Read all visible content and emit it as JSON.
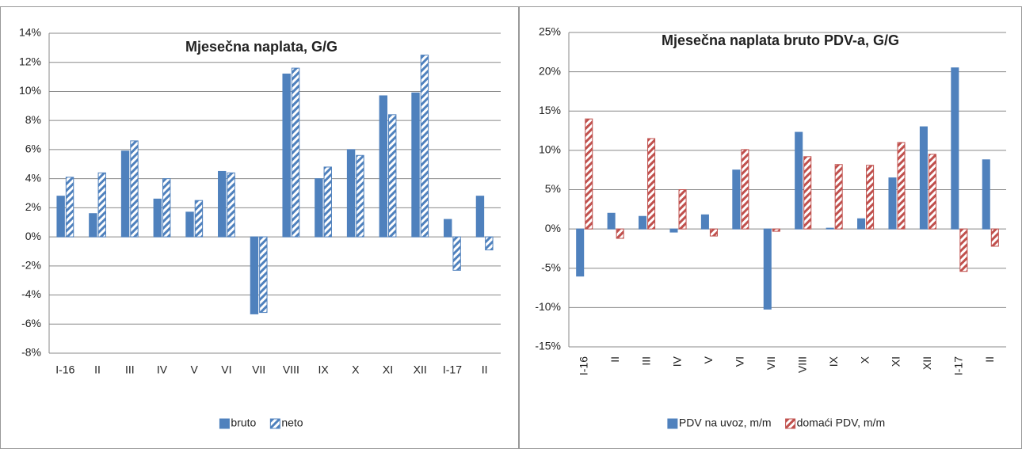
{
  "chart_data": [
    {
      "type": "bar",
      "title": "Mjesečna naplata, G/G",
      "categories": [
        "I-16",
        "II",
        "III",
        "IV",
        "V",
        "VI",
        "VII",
        "VIII",
        "IX",
        "X",
        "XI",
        "XII",
        "I-17",
        "II"
      ],
      "series": [
        {
          "name": "bruto",
          "color": "#4f81bd",
          "hatch": false,
          "values": [
            2.8,
            1.6,
            5.9,
            2.6,
            1.7,
            4.5,
            -5.3,
            11.2,
            4.0,
            6.0,
            9.7,
            9.9,
            1.2,
            2.8
          ]
        },
        {
          "name": "neto",
          "color": "#4f81bd",
          "hatch": true,
          "values": [
            4.1,
            4.4,
            6.6,
            4.0,
            2.5,
            4.4,
            -5.2,
            11.6,
            4.8,
            5.6,
            8.4,
            12.5,
            -2.3,
            -0.9
          ]
        }
      ],
      "ylim": [
        -8,
        14
      ],
      "yticks": [
        {
          "value": -8,
          "label": "-8%"
        },
        {
          "value": -6,
          "label": "-6%"
        },
        {
          "value": -4,
          "label": "-4%"
        },
        {
          "value": -2,
          "label": "-2%"
        },
        {
          "value": 0,
          "label": "0%"
        },
        {
          "value": 2,
          "label": "2%"
        },
        {
          "value": 4,
          "label": "4%"
        },
        {
          "value": 6,
          "label": "6%"
        },
        {
          "value": 8,
          "label": "8%"
        },
        {
          "value": 10,
          "label": "10%"
        },
        {
          "value": 12,
          "label": "12%"
        },
        {
          "value": 14,
          "label": "14%"
        }
      ],
      "grid": true,
      "rotate_labels": false
    },
    {
      "type": "bar",
      "title": "Mjesečna naplata bruto PDV-a, G/G",
      "categories": [
        "I-16",
        "II",
        "III",
        "IV",
        "V",
        "VI",
        "VII",
        "VIII",
        "IX",
        "X",
        "XI",
        "XII",
        "I-17",
        "II"
      ],
      "series": [
        {
          "name": "PDV na uvoz, m/m",
          "color": "#4f81bd",
          "hatch": false,
          "values": [
            -6.0,
            2.0,
            1.6,
            -0.4,
            1.8,
            7.5,
            -10.2,
            12.3,
            0.1,
            1.3,
            6.5,
            13.0,
            20.5,
            8.8
          ]
        },
        {
          "name": "domaći PDV, m/m",
          "color": "#c0504d",
          "hatch": true,
          "values": [
            14.0,
            -1.2,
            11.5,
            5.0,
            -0.9,
            10.1,
            -0.3,
            9.2,
            8.2,
            8.1,
            11.0,
            9.5,
            -5.4,
            -2.2
          ]
        }
      ],
      "ylim": [
        -15,
        25
      ],
      "yticks": [
        {
          "value": -15,
          "label": "-15%"
        },
        {
          "value": -10,
          "label": "-10%"
        },
        {
          "value": -5,
          "label": "-5%"
        },
        {
          "value": 0,
          "label": "0%"
        },
        {
          "value": 5,
          "label": "5%"
        },
        {
          "value": 10,
          "label": "10%"
        },
        {
          "value": 15,
          "label": "15%"
        },
        {
          "value": 20,
          "label": "20%"
        },
        {
          "value": 25,
          "label": "25%"
        }
      ],
      "grid": true,
      "rotate_labels": true
    }
  ]
}
